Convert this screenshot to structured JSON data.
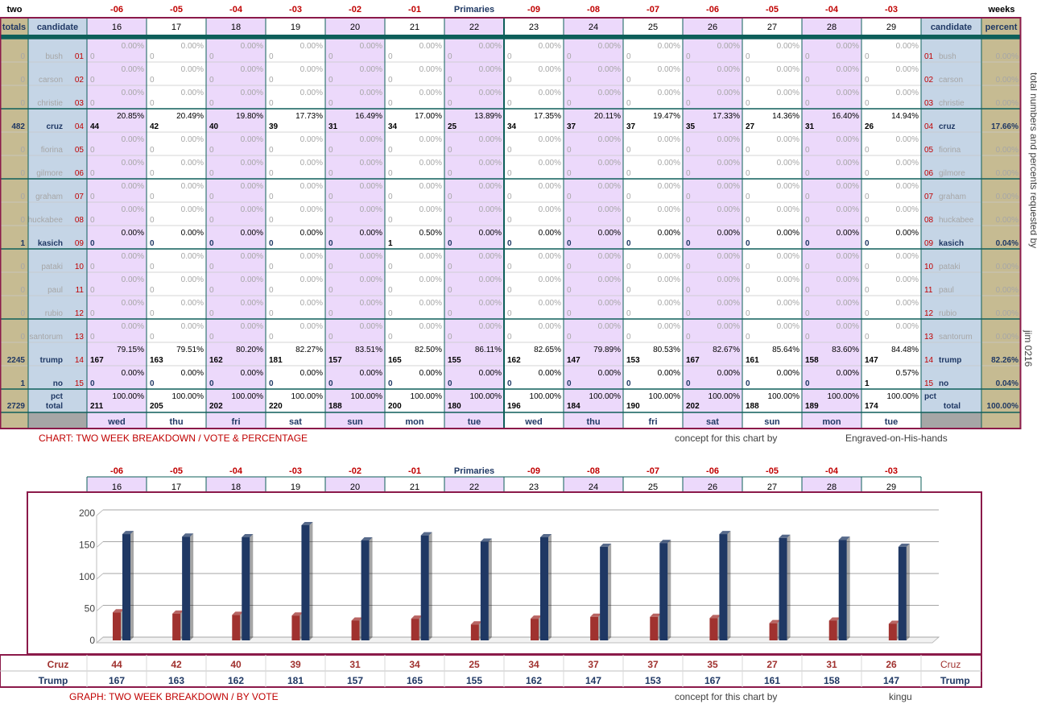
{
  "top_labels": {
    "left": "two",
    "right": "weeks"
  },
  "offsets": [
    "-06",
    "-05",
    "-04",
    "-03",
    "-02",
    "-01",
    "Primaries",
    "-09",
    "-08",
    "-07",
    "-06",
    "-05",
    "-04",
    "-03"
  ],
  "days": [
    "16",
    "17",
    "18",
    "19",
    "20",
    "21",
    "22",
    "23",
    "24",
    "25",
    "26",
    "27",
    "28",
    "29"
  ],
  "weekdays": [
    "wed",
    "thu",
    "fri",
    "sat",
    "sun",
    "mon",
    "tue",
    "wed",
    "thu",
    "fri",
    "sat",
    "sun",
    "mon",
    "tue"
  ],
  "headers": {
    "totals": "totals",
    "candidate": "candidate",
    "candidate_right": "candidate",
    "percent": "percent",
    "pct": "pct",
    "total": "total"
  },
  "candidates": [
    {
      "num": "01",
      "name": "bush",
      "total": "0",
      "percent": "0.00%",
      "votes": [
        0,
        0,
        0,
        0,
        0,
        0,
        0,
        0,
        0,
        0,
        0,
        0,
        0,
        0
      ],
      "pcts": [
        "0.00%",
        "0.00%",
        "0.00%",
        "0.00%",
        "0.00%",
        "0.00%",
        "0.00%",
        "0.00%",
        "0.00%",
        "0.00%",
        "0.00%",
        "0.00%",
        "0.00%",
        "0.00%"
      ]
    },
    {
      "num": "02",
      "name": "carson",
      "total": "0",
      "percent": "0.00%",
      "votes": [
        0,
        0,
        0,
        0,
        0,
        0,
        0,
        0,
        0,
        0,
        0,
        0,
        0,
        0
      ],
      "pcts": [
        "0.00%",
        "0.00%",
        "0.00%",
        "0.00%",
        "0.00%",
        "0.00%",
        "0.00%",
        "0.00%",
        "0.00%",
        "0.00%",
        "0.00%",
        "0.00%",
        "0.00%",
        "0.00%"
      ]
    },
    {
      "num": "03",
      "name": "christie",
      "total": "0",
      "percent": "0.00%",
      "votes": [
        0,
        0,
        0,
        0,
        0,
        0,
        0,
        0,
        0,
        0,
        0,
        0,
        0,
        0
      ],
      "pcts": [
        "0.00%",
        "0.00%",
        "0.00%",
        "0.00%",
        "0.00%",
        "0.00%",
        "0.00%",
        "0.00%",
        "0.00%",
        "0.00%",
        "0.00%",
        "0.00%",
        "0.00%",
        "0.00%"
      ]
    },
    {
      "num": "04",
      "name": "cruz",
      "total": "482",
      "percent": "17.66%",
      "active": true,
      "votes": [
        44,
        42,
        40,
        39,
        31,
        34,
        25,
        34,
        37,
        37,
        35,
        27,
        31,
        26
      ],
      "pcts": [
        "20.85%",
        "20.49%",
        "19.80%",
        "17.73%",
        "16.49%",
        "17.00%",
        "13.89%",
        "17.35%",
        "20.11%",
        "19.47%",
        "17.33%",
        "14.36%",
        "16.40%",
        "14.94%"
      ]
    },
    {
      "num": "05",
      "name": "fiorina",
      "total": "0",
      "percent": "0.00%",
      "votes": [
        0,
        0,
        0,
        0,
        0,
        0,
        0,
        0,
        0,
        0,
        0,
        0,
        0,
        0
      ],
      "pcts": [
        "0.00%",
        "0.00%",
        "0.00%",
        "0.00%",
        "0.00%",
        "0.00%",
        "0.00%",
        "0.00%",
        "0.00%",
        "0.00%",
        "0.00%",
        "0.00%",
        "0.00%",
        "0.00%"
      ]
    },
    {
      "num": "06",
      "name": "gilmore",
      "total": "0",
      "percent": "0.00%",
      "votes": [
        0,
        0,
        0,
        0,
        0,
        0,
        0,
        0,
        0,
        0,
        0,
        0,
        0,
        0
      ],
      "pcts": [
        "0.00%",
        "0.00%",
        "0.00%",
        "0.00%",
        "0.00%",
        "0.00%",
        "0.00%",
        "0.00%",
        "0.00%",
        "0.00%",
        "0.00%",
        "0.00%",
        "0.00%",
        "0.00%"
      ]
    },
    {
      "num": "07",
      "name": "graham",
      "total": "0",
      "percent": "0.00%",
      "votes": [
        0,
        0,
        0,
        0,
        0,
        0,
        0,
        0,
        0,
        0,
        0,
        0,
        0,
        0
      ],
      "pcts": [
        "0.00%",
        "0.00%",
        "0.00%",
        "0.00%",
        "0.00%",
        "0.00%",
        "0.00%",
        "0.00%",
        "0.00%",
        "0.00%",
        "0.00%",
        "0.00%",
        "0.00%",
        "0.00%"
      ]
    },
    {
      "num": "08",
      "name": "huckabee",
      "total": "0",
      "percent": "0.00%",
      "votes": [
        0,
        0,
        0,
        0,
        0,
        0,
        0,
        0,
        0,
        0,
        0,
        0,
        0,
        0
      ],
      "pcts": [
        "0.00%",
        "0.00%",
        "0.00%",
        "0.00%",
        "0.00%",
        "0.00%",
        "0.00%",
        "0.00%",
        "0.00%",
        "0.00%",
        "0.00%",
        "0.00%",
        "0.00%",
        "0.00%"
      ]
    },
    {
      "num": "09",
      "name": "kasich",
      "total": "1",
      "percent": "0.04%",
      "active": true,
      "votes": [
        0,
        0,
        0,
        0,
        0,
        1,
        0,
        0,
        0,
        0,
        0,
        0,
        0,
        0
      ],
      "pcts": [
        "0.00%",
        "0.00%",
        "0.00%",
        "0.00%",
        "0.00%",
        "0.50%",
        "0.00%",
        "0.00%",
        "0.00%",
        "0.00%",
        "0.00%",
        "0.00%",
        "0.00%",
        "0.00%"
      ]
    },
    {
      "num": "10",
      "name": "pataki",
      "total": "0",
      "percent": "0.00%",
      "votes": [
        0,
        0,
        0,
        0,
        0,
        0,
        0,
        0,
        0,
        0,
        0,
        0,
        0,
        0
      ],
      "pcts": [
        "0.00%",
        "0.00%",
        "0.00%",
        "0.00%",
        "0.00%",
        "0.00%",
        "0.00%",
        "0.00%",
        "0.00%",
        "0.00%",
        "0.00%",
        "0.00%",
        "0.00%",
        "0.00%"
      ]
    },
    {
      "num": "11",
      "name": "paul",
      "total": "0",
      "percent": "0.00%",
      "votes": [
        0,
        0,
        0,
        0,
        0,
        0,
        0,
        0,
        0,
        0,
        0,
        0,
        0,
        0
      ],
      "pcts": [
        "0.00%",
        "0.00%",
        "0.00%",
        "0.00%",
        "0.00%",
        "0.00%",
        "0.00%",
        "0.00%",
        "0.00%",
        "0.00%",
        "0.00%",
        "0.00%",
        "0.00%",
        "0.00%"
      ]
    },
    {
      "num": "12",
      "name": "rubio",
      "total": "0",
      "percent": "0.00%",
      "votes": [
        0,
        0,
        0,
        0,
        0,
        0,
        0,
        0,
        0,
        0,
        0,
        0,
        0,
        0
      ],
      "pcts": [
        "0.00%",
        "0.00%",
        "0.00%",
        "0.00%",
        "0.00%",
        "0.00%",
        "0.00%",
        "0.00%",
        "0.00%",
        "0.00%",
        "0.00%",
        "0.00%",
        "0.00%",
        "0.00%"
      ]
    },
    {
      "num": "13",
      "name": "santorum",
      "total": "0",
      "percent": "0.00%",
      "votes": [
        0,
        0,
        0,
        0,
        0,
        0,
        0,
        0,
        0,
        0,
        0,
        0,
        0,
        0
      ],
      "pcts": [
        "0.00%",
        "0.00%",
        "0.00%",
        "0.00%",
        "0.00%",
        "0.00%",
        "0.00%",
        "0.00%",
        "0.00%",
        "0.00%",
        "0.00%",
        "0.00%",
        "0.00%",
        "0.00%"
      ]
    },
    {
      "num": "14",
      "name": "trump",
      "total": "2245",
      "percent": "82.26%",
      "active": true,
      "votes": [
        167,
        163,
        162,
        181,
        157,
        165,
        155,
        162,
        147,
        153,
        167,
        161,
        158,
        147
      ],
      "pcts": [
        "79.15%",
        "79.51%",
        "80.20%",
        "82.27%",
        "83.51%",
        "82.50%",
        "86.11%",
        "82.65%",
        "79.89%",
        "80.53%",
        "82.67%",
        "85.64%",
        "83.60%",
        "84.48%"
      ]
    },
    {
      "num": "15",
      "name": "no",
      "total": "1",
      "percent": "0.04%",
      "active": true,
      "votes": [
        0,
        0,
        0,
        0,
        0,
        0,
        0,
        0,
        0,
        0,
        0,
        0,
        0,
        1
      ],
      "pcts": [
        "0.00%",
        "0.00%",
        "0.00%",
        "0.00%",
        "0.00%",
        "0.00%",
        "0.00%",
        "0.00%",
        "0.00%",
        "0.00%",
        "0.00%",
        "0.00%",
        "0.00%",
        "0.57%"
      ]
    }
  ],
  "totals_row": {
    "grand_total": "2729",
    "grand_percent": "100.00%",
    "votes": [
      211,
      205,
      202,
      220,
      188,
      200,
      180,
      196,
      184,
      190,
      202,
      188,
      189,
      174
    ],
    "pcts": [
      "100.00%",
      "100.00%",
      "100.00%",
      "100.00%",
      "100.00%",
      "100.00%",
      "100.00%",
      "100.00%",
      "100.00%",
      "100.00%",
      "100.00%",
      "100.00%",
      "100.00%",
      "100.00%"
    ]
  },
  "side_text": {
    "requested": "total numbers and percents requested by",
    "author": "jim 0216"
  },
  "captions": {
    "table_title": "CHART: TWO WEEK BREAKDOWN / VOTE & PERCENTAGE",
    "table_concept": "concept for this chart by",
    "table_concept_author": "Engraved-on-His-hands",
    "graph_title": "GRAPH: TWO WEEK BREAKDOWN / BY VOTE",
    "graph_concept": "concept for this chart by",
    "graph_concept_author": "kingu"
  },
  "colors": {
    "border": "#8b1a4a",
    "teal": "#0e5f5a",
    "lavender": "#ecd9fb",
    "blue_panel": "#c5d5e6",
    "tan": "#c6bb92",
    "cruz": "#a0322f",
    "trump": "#1f3864",
    "red_text": "#c00000"
  },
  "chart_data": {
    "type": "bar",
    "title": "GRAPH: TWO WEEK BREAKDOWN / BY VOTE",
    "categories": [
      "16",
      "17",
      "18",
      "19",
      "20",
      "21",
      "22",
      "23",
      "24",
      "25",
      "26",
      "27",
      "28",
      "29"
    ],
    "series": [
      {
        "name": "Cruz",
        "values": [
          44,
          42,
          40,
          39,
          31,
          34,
          25,
          34,
          37,
          37,
          35,
          27,
          31,
          26
        ]
      },
      {
        "name": "Trump",
        "values": [
          167,
          163,
          162,
          181,
          157,
          165,
          155,
          162,
          147,
          153,
          167,
          161,
          158,
          147
        ]
      }
    ],
    "yticks": [
      0,
      50,
      100,
      150,
      200
    ],
    "ylim": [
      0,
      200
    ],
    "grid": true
  }
}
